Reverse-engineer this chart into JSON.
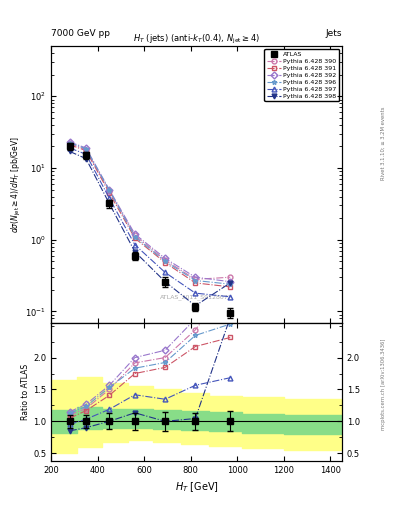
{
  "title_top": "7000 GeV pp",
  "title_right": "Jets",
  "subtitle": "H_{T} (jets) (anti-k_{T}(0.4), N_{jet} >= 4)",
  "watermark": "ATLAS_2011_S9128077",
  "xlim": [
    200,
    1450
  ],
  "ylim_main": [
    0.07,
    500
  ],
  "ylim_ratio": [
    0.38,
    2.55
  ],
  "ht_bins": [
    280,
    350,
    450,
    560,
    690,
    820,
    970,
    1200,
    1350
  ],
  "atlas_y": [
    20.0,
    15.0,
    3.2,
    0.6,
    0.26,
    0.115,
    0.095,
    null,
    null
  ],
  "atlas_yerr": [
    2.0,
    1.5,
    0.4,
    0.08,
    0.04,
    0.015,
    0.015,
    null,
    null
  ],
  "pythia_390_y": [
    22.0,
    18.0,
    4.8,
    1.15,
    0.52,
    0.28,
    0.3,
    null,
    null
  ],
  "pythia_391_y": [
    21.0,
    17.5,
    4.5,
    1.05,
    0.48,
    0.25,
    0.22,
    null,
    null
  ],
  "pythia_392_y": [
    23.0,
    19.0,
    5.0,
    1.2,
    0.55,
    0.3,
    0.26,
    null,
    null
  ],
  "pythia_396_y": [
    22.5,
    18.5,
    4.9,
    1.1,
    0.5,
    0.27,
    0.24,
    null,
    null
  ],
  "pythia_397_y": [
    19.0,
    15.5,
    3.8,
    0.85,
    0.35,
    0.18,
    0.16,
    null,
    null
  ],
  "pythia_398_y": [
    17.0,
    13.5,
    3.2,
    0.68,
    0.26,
    0.12,
    0.25,
    null,
    null
  ],
  "series": [
    {
      "label": "Pythia 6.428 390",
      "color": "#cc77aa",
      "marker": "o",
      "markerfill": "none",
      "linestyle": "-.",
      "key": "pythia_390_y"
    },
    {
      "label": "Pythia 6.428 391",
      "color": "#cc5566",
      "marker": "s",
      "markerfill": "none",
      "linestyle": "-.",
      "key": "pythia_391_y"
    },
    {
      "label": "Pythia 6.428 392",
      "color": "#9977cc",
      "marker": "D",
      "markerfill": "none",
      "linestyle": "-.",
      "key": "pythia_392_y"
    },
    {
      "label": "Pythia 6.428 396",
      "color": "#6699cc",
      "marker": "*",
      "markerfill": "none",
      "linestyle": "-.",
      "key": "pythia_396_y"
    },
    {
      "label": "Pythia 6.428 397",
      "color": "#4455bb",
      "marker": "^",
      "markerfill": "none",
      "linestyle": "-.",
      "key": "pythia_397_y"
    },
    {
      "label": "Pythia 6.428 398",
      "color": "#223388",
      "marker": "v",
      "markerfill": "#223388",
      "linestyle": "-.",
      "key": "pythia_398_y"
    }
  ],
  "green_band_x": [
    200,
    310,
    420,
    530,
    640,
    760,
    880,
    1020,
    1200,
    1450
  ],
  "green_band_lo": [
    0.82,
    0.88,
    0.9,
    0.9,
    0.88,
    0.86,
    0.84,
    0.82,
    0.8,
    0.8
  ],
  "green_band_hi": [
    1.18,
    1.22,
    1.2,
    1.2,
    1.18,
    1.16,
    1.14,
    1.12,
    1.1,
    1.1
  ],
  "yellow_band_x": [
    200,
    310,
    420,
    530,
    640,
    760,
    880,
    1020,
    1200,
    1450
  ],
  "yellow_band_lo": [
    0.5,
    0.6,
    0.68,
    0.7,
    0.68,
    0.65,
    0.62,
    0.58,
    0.55,
    0.55
  ],
  "yellow_band_hi": [
    1.65,
    1.7,
    1.6,
    1.55,
    1.5,
    1.45,
    1.4,
    1.38,
    1.35,
    1.35
  ]
}
